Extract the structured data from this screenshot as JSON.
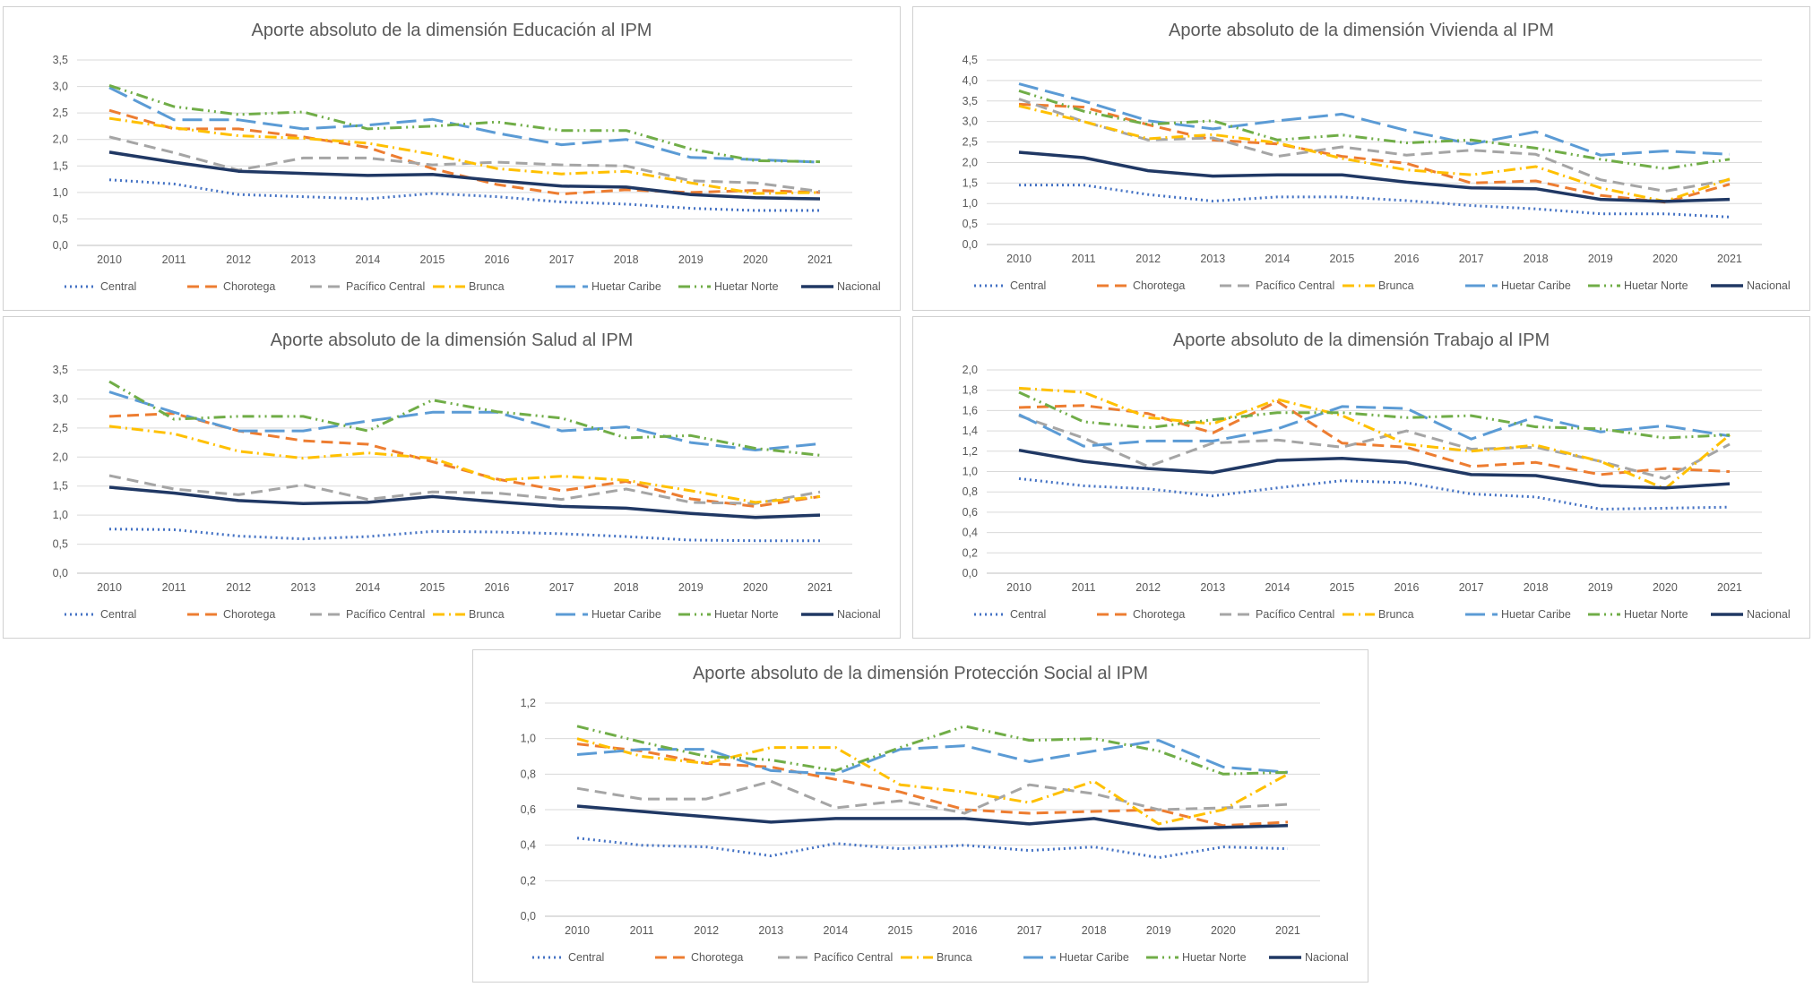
{
  "series_styles": {
    "Central": {
      "color": "#4472C4",
      "dash": "2,4",
      "width": 3
    },
    "Chorotega": {
      "color": "#ED7D31",
      "dash": "13,7",
      "width": 3
    },
    "Pacífico Central": {
      "color": "#A5A5A5",
      "dash": "13,7",
      "width": 3
    },
    "Brunca": {
      "color": "#FFC000",
      "dash": "13,5,2,5",
      "width": 3
    },
    "Huetar Caribe": {
      "color": "#5B9BD5",
      "dash": "22,8",
      "width": 3
    },
    "Huetar Norte": {
      "color": "#70AD47",
      "dash": "13,5,2,5,2,5",
      "width": 3
    },
    "Nacional": {
      "color": "#203864",
      "dash": "",
      "width": 3.5
    }
  },
  "chart_data": [
    {
      "type": "line",
      "title": "Aporte absoluto de la dimensión Educación al IPM",
      "categories": [
        "2010",
        "2011",
        "2012",
        "2013",
        "2014",
        "2015",
        "2016",
        "2017",
        "2018",
        "2019",
        "2020",
        "2021"
      ],
      "ylim": [
        0,
        3.5
      ],
      "ystep": 0.5,
      "grid": true,
      "legend": "bottom",
      "yticks": [
        "0,0",
        "0,5",
        "1,0",
        "1,5",
        "2,0",
        "2,5",
        "3,0",
        "3,5"
      ],
      "series": [
        {
          "name": "Central",
          "values": [
            1.24,
            1.16,
            0.96,
            0.92,
            0.88,
            0.98,
            0.92,
            0.82,
            0.78,
            0.7,
            0.66,
            0.66
          ]
        },
        {
          "name": "Chorotega",
          "values": [
            2.55,
            2.2,
            2.2,
            2.05,
            1.85,
            1.45,
            1.15,
            0.97,
            1.05,
            1.0,
            1.04,
            1.0
          ]
        },
        {
          "name": "Pacífico Central",
          "values": [
            2.05,
            1.75,
            1.42,
            1.65,
            1.65,
            1.52,
            1.57,
            1.52,
            1.5,
            1.22,
            1.18,
            1.02
          ]
        },
        {
          "name": "Brunca",
          "values": [
            2.4,
            2.22,
            2.07,
            2.02,
            1.93,
            1.72,
            1.45,
            1.35,
            1.4,
            1.18,
            0.98,
            1.0
          ]
        },
        {
          "name": "Huetar Caribe",
          "values": [
            2.98,
            2.37,
            2.37,
            2.2,
            2.27,
            2.38,
            2.12,
            1.9,
            2.0,
            1.66,
            1.62,
            1.57
          ]
        },
        {
          "name": "Huetar Norte",
          "values": [
            3.02,
            2.62,
            2.47,
            2.52,
            2.2,
            2.25,
            2.33,
            2.17,
            2.17,
            1.82,
            1.6,
            1.58
          ]
        },
        {
          "name": "Nacional",
          "values": [
            1.76,
            1.57,
            1.4,
            1.36,
            1.32,
            1.34,
            1.22,
            1.12,
            1.1,
            0.96,
            0.9,
            0.88
          ]
        }
      ]
    },
    {
      "type": "line",
      "title": "Aporte absoluto de la dimensión Vivienda al IPM",
      "categories": [
        "2010",
        "2011",
        "2012",
        "2013",
        "2014",
        "2015",
        "2016",
        "2017",
        "2018",
        "2019",
        "2020",
        "2021"
      ],
      "ylim": [
        0,
        4.5
      ],
      "ystep": 0.5,
      "grid": true,
      "legend": "bottom",
      "yticks": [
        "0,0",
        "0,5",
        "1,0",
        "1,5",
        "2,0",
        "2,5",
        "3,0",
        "3,5",
        "4,0",
        "4,5"
      ],
      "series": [
        {
          "name": "Central",
          "values": [
            1.45,
            1.45,
            1.22,
            1.06,
            1.16,
            1.16,
            1.07,
            0.95,
            0.87,
            0.75,
            0.75,
            0.67
          ]
        },
        {
          "name": "Chorotega",
          "values": [
            3.42,
            3.35,
            2.92,
            2.55,
            2.45,
            2.15,
            1.98,
            1.5,
            1.55,
            1.2,
            1.03,
            1.47
          ]
        },
        {
          "name": "Pacífico Central",
          "values": [
            3.55,
            3.0,
            2.55,
            2.6,
            2.15,
            2.38,
            2.18,
            2.3,
            2.2,
            1.58,
            1.3,
            1.58
          ]
        },
        {
          "name": "Brunca",
          "values": [
            3.38,
            3.0,
            2.58,
            2.68,
            2.48,
            2.1,
            1.82,
            1.7,
            1.9,
            1.38,
            1.05,
            1.6
          ]
        },
        {
          "name": "Huetar Caribe",
          "values": [
            3.92,
            3.5,
            3.02,
            2.82,
            3.02,
            3.18,
            2.78,
            2.45,
            2.75,
            2.18,
            2.28,
            2.2
          ]
        },
        {
          "name": "Huetar Norte",
          "values": [
            3.75,
            3.25,
            2.93,
            3.02,
            2.55,
            2.67,
            2.48,
            2.55,
            2.35,
            2.08,
            1.85,
            2.08
          ]
        },
        {
          "name": "Nacional",
          "values": [
            2.25,
            2.12,
            1.8,
            1.67,
            1.7,
            1.7,
            1.52,
            1.38,
            1.36,
            1.1,
            1.05,
            1.1
          ]
        }
      ]
    },
    {
      "type": "line",
      "title": "Aporte absoluto de la dimensión Salud al IPM",
      "categories": [
        "2010",
        "2011",
        "2012",
        "2013",
        "2014",
        "2015",
        "2016",
        "2017",
        "2018",
        "2019",
        "2020",
        "2021"
      ],
      "ylim": [
        0,
        3.5
      ],
      "ystep": 0.5,
      "grid": true,
      "legend": "bottom",
      "yticks": [
        "0,0",
        "0,5",
        "1,0",
        "1,5",
        "2,0",
        "2,5",
        "3,0",
        "3,5"
      ],
      "series": [
        {
          "name": "Central",
          "values": [
            0.76,
            0.75,
            0.64,
            0.59,
            0.63,
            0.72,
            0.71,
            0.68,
            0.63,
            0.57,
            0.56,
            0.56
          ]
        },
        {
          "name": "Chorotega",
          "values": [
            2.7,
            2.75,
            2.45,
            2.28,
            2.22,
            1.92,
            1.62,
            1.42,
            1.58,
            1.28,
            1.15,
            1.32
          ]
        },
        {
          "name": "Pacífico Central",
          "values": [
            1.68,
            1.45,
            1.35,
            1.52,
            1.27,
            1.4,
            1.38,
            1.27,
            1.45,
            1.22,
            1.2,
            1.4
          ]
        },
        {
          "name": "Brunca",
          "values": [
            2.53,
            2.4,
            2.1,
            1.98,
            2.07,
            1.98,
            1.6,
            1.67,
            1.6,
            1.42,
            1.22,
            1.32
          ]
        },
        {
          "name": "Huetar Caribe",
          "values": [
            3.12,
            2.77,
            2.45,
            2.45,
            2.62,
            2.77,
            2.77,
            2.45,
            2.52,
            2.25,
            2.12,
            2.23
          ]
        },
        {
          "name": "Huetar Norte",
          "values": [
            3.3,
            2.65,
            2.7,
            2.7,
            2.45,
            2.98,
            2.78,
            2.67,
            2.33,
            2.37,
            2.15,
            2.03
          ]
        },
        {
          "name": "Nacional",
          "values": [
            1.48,
            1.38,
            1.25,
            1.2,
            1.22,
            1.32,
            1.23,
            1.15,
            1.12,
            1.03,
            0.96,
            1.0
          ]
        }
      ]
    },
    {
      "type": "line",
      "title": "Aporte absoluto de la dimensión Trabajo al IPM",
      "categories": [
        "2010",
        "2011",
        "2012",
        "2013",
        "2014",
        "2015",
        "2016",
        "2017",
        "2018",
        "2019",
        "2020",
        "2021"
      ],
      "ylim": [
        0,
        2.0
      ],
      "ystep": 0.2,
      "grid": true,
      "legend": "bottom",
      "yticks": [
        "0,0",
        "0,2",
        "0,4",
        "0,6",
        "0,8",
        "1,0",
        "1,2",
        "1,4",
        "1,6",
        "1,8",
        "2,0"
      ],
      "series": [
        {
          "name": "Central",
          "values": [
            0.93,
            0.86,
            0.83,
            0.76,
            0.84,
            0.91,
            0.89,
            0.78,
            0.75,
            0.63,
            0.64,
            0.65
          ]
        },
        {
          "name": "Chorotega",
          "values": [
            1.63,
            1.65,
            1.57,
            1.38,
            1.69,
            1.28,
            1.24,
            1.05,
            1.09,
            0.97,
            1.03,
            1.0
          ]
        },
        {
          "name": "Pacífico Central",
          "values": [
            1.55,
            1.33,
            1.05,
            1.28,
            1.31,
            1.24,
            1.4,
            1.22,
            1.24,
            1.1,
            0.93,
            1.27
          ]
        },
        {
          "name": "Brunca",
          "values": [
            1.82,
            1.78,
            1.53,
            1.47,
            1.71,
            1.55,
            1.27,
            1.2,
            1.26,
            1.1,
            0.83,
            1.36
          ]
        },
        {
          "name": "Huetar Caribe",
          "values": [
            1.56,
            1.25,
            1.3,
            1.3,
            1.42,
            1.64,
            1.62,
            1.32,
            1.54,
            1.39,
            1.45,
            1.35
          ]
        },
        {
          "name": "Huetar Norte",
          "values": [
            1.78,
            1.49,
            1.43,
            1.51,
            1.58,
            1.58,
            1.53,
            1.55,
            1.44,
            1.42,
            1.33,
            1.36
          ]
        },
        {
          "name": "Nacional",
          "values": [
            1.21,
            1.1,
            1.03,
            0.99,
            1.11,
            1.13,
            1.09,
            0.97,
            0.96,
            0.86,
            0.84,
            0.88
          ]
        }
      ]
    },
    {
      "type": "line",
      "title": "Aporte absoluto de la dimensión Protección Social al IPM",
      "categories": [
        "2010",
        "2011",
        "2012",
        "2013",
        "2014",
        "2015",
        "2016",
        "2017",
        "2018",
        "2019",
        "2020",
        "2021"
      ],
      "ylim": [
        0,
        1.2
      ],
      "ystep": 0.2,
      "grid": true,
      "legend": "bottom",
      "yticks": [
        "0,0",
        "0,2",
        "0,4",
        "0,6",
        "0,8",
        "1,0",
        "1,2"
      ],
      "series": [
        {
          "name": "Central",
          "values": [
            0.44,
            0.4,
            0.39,
            0.34,
            0.41,
            0.38,
            0.4,
            0.37,
            0.39,
            0.33,
            0.39,
            0.38
          ]
        },
        {
          "name": "Chorotega",
          "values": [
            0.97,
            0.93,
            0.86,
            0.84,
            0.77,
            0.7,
            0.6,
            0.58,
            0.59,
            0.6,
            0.51,
            0.53
          ]
        },
        {
          "name": "Pacífico Central",
          "values": [
            0.72,
            0.66,
            0.66,
            0.76,
            0.61,
            0.65,
            0.58,
            0.74,
            0.69,
            0.6,
            0.61,
            0.63
          ]
        },
        {
          "name": "Brunca",
          "values": [
            1.0,
            0.9,
            0.86,
            0.95,
            0.95,
            0.74,
            0.7,
            0.64,
            0.76,
            0.52,
            0.6,
            0.8
          ]
        },
        {
          "name": "Huetar Caribe",
          "values": [
            0.91,
            0.94,
            0.94,
            0.82,
            0.8,
            0.94,
            0.96,
            0.87,
            0.93,
            0.99,
            0.84,
            0.81
          ]
        },
        {
          "name": "Huetar Norte",
          "values": [
            1.07,
            0.98,
            0.9,
            0.88,
            0.82,
            0.95,
            1.07,
            0.99,
            1.0,
            0.93,
            0.8,
            0.81
          ]
        },
        {
          "name": "Nacional",
          "values": [
            0.62,
            0.59,
            0.56,
            0.53,
            0.55,
            0.55,
            0.55,
            0.52,
            0.55,
            0.49,
            0.5,
            0.51
          ]
        }
      ]
    }
  ]
}
